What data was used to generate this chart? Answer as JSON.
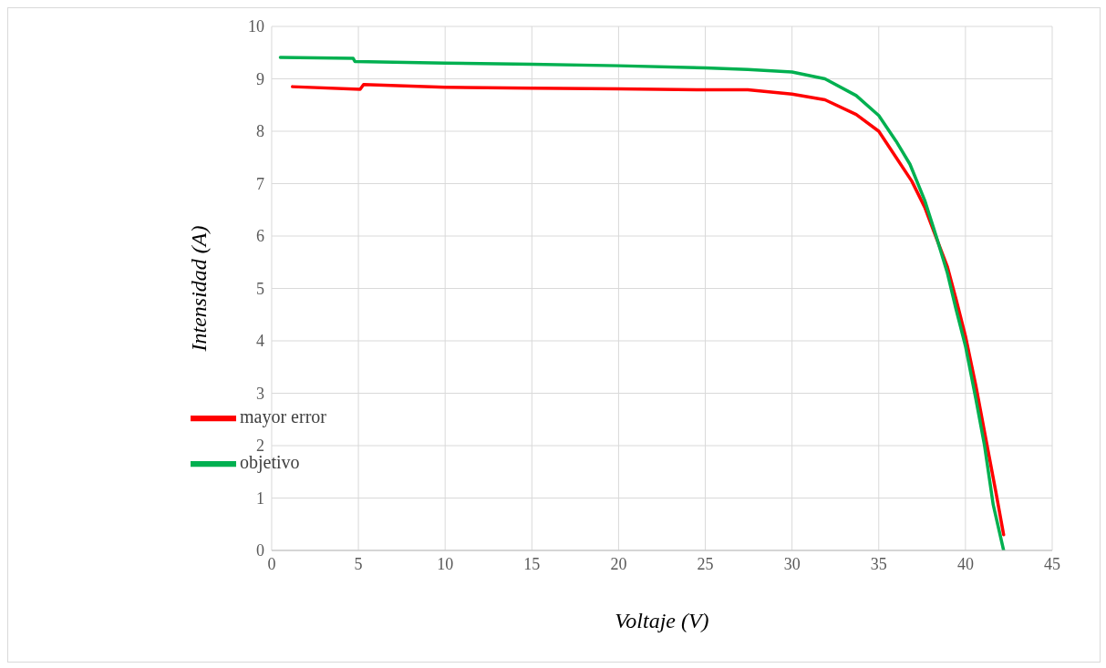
{
  "chart_data": {
    "type": "line",
    "xlabel": "Voltaje (V)",
    "ylabel": "Intensidad (A)",
    "xlim": [
      0,
      45
    ],
    "xticks": [
      0,
      5,
      10,
      15,
      20,
      25,
      30,
      35,
      40,
      45
    ],
    "ylim": [
      0,
      10
    ],
    "yticks": [
      0,
      1,
      2,
      3,
      4,
      5,
      6,
      7,
      8,
      9,
      10
    ],
    "grid": true,
    "legend": "bottom left",
    "marker": "none",
    "line_style": "solid",
    "series": [
      {
        "name": "mayor error",
        "color": "#ff0000",
        "x": [
          1.2,
          5.1,
          5.3,
          10,
          15,
          20,
          25,
          27.45,
          30,
          31.9,
          33.7,
          35,
          36,
          36.9,
          37.65,
          38.3,
          38.96,
          39.46,
          40,
          40.6,
          41.1,
          41.75,
          42.2
        ],
        "values": [
          8.85,
          8.8,
          8.89,
          8.84,
          8.82,
          8.81,
          8.79,
          8.79,
          8.71,
          8.6,
          8.32,
          8.0,
          7.5,
          7.05,
          6.55,
          5.98,
          5.41,
          4.79,
          4.09,
          3.14,
          2.26,
          1.12,
          0.3
        ]
      },
      {
        "name": "objetivo",
        "color": "#00b050",
        "x": [
          0.5,
          4.7,
          4.8,
          10,
          15,
          20,
          25,
          27.45,
          30,
          31.9,
          33.7,
          35,
          36,
          36.8,
          37.65,
          38.3,
          38.96,
          39.46,
          40,
          40.6,
          41.1,
          41.6,
          42.2
        ],
        "values": [
          9.41,
          9.39,
          9.33,
          9.3,
          9.28,
          9.25,
          9.21,
          9.18,
          9.13,
          9.0,
          8.68,
          8.3,
          7.81,
          7.37,
          6.68,
          6.01,
          5.29,
          4.6,
          3.9,
          2.89,
          2.0,
          0.87,
          0
        ]
      }
    ]
  }
}
